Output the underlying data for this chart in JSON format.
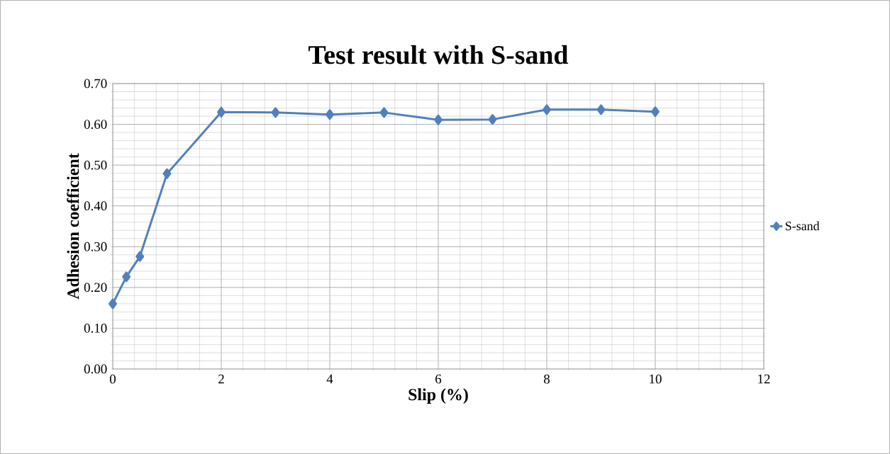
{
  "chart_data": {
    "type": "line",
    "title": "Test result with S-sand",
    "xlabel": "Slip (%)",
    "ylabel": "Adhesion coefficient",
    "x": [
      0,
      0.25,
      0.5,
      1,
      2,
      3,
      4,
      5,
      6,
      7,
      8,
      9,
      10
    ],
    "series": [
      {
        "name": "S-sand",
        "color": "#4f81bd",
        "values": [
          0.16,
          0.226,
          0.276,
          0.479,
          0.63,
          0.629,
          0.624,
          0.629,
          0.611,
          0.612,
          0.636,
          0.636,
          0.631
        ]
      }
    ],
    "xlim": [
      0,
      12
    ],
    "xticks": [
      0,
      2,
      4,
      6,
      8,
      10,
      12
    ],
    "ylim": [
      0,
      0.7
    ],
    "yticks": [
      {
        "value": 0,
        "label": "0.00"
      },
      {
        "value": 0.1,
        "label": "0.10"
      },
      {
        "value": 0.2,
        "label": "0.20"
      },
      {
        "value": 0.3,
        "label": "0.30"
      },
      {
        "value": 0.4,
        "label": "0.40"
      },
      {
        "value": 0.5,
        "label": "0.50"
      },
      {
        "value": 0.6,
        "label": "0.60"
      },
      {
        "value": 0.7,
        "label": "0.70"
      }
    ],
    "grid": true,
    "legend": "right",
    "marker": "diamond",
    "line_style": "solid"
  }
}
